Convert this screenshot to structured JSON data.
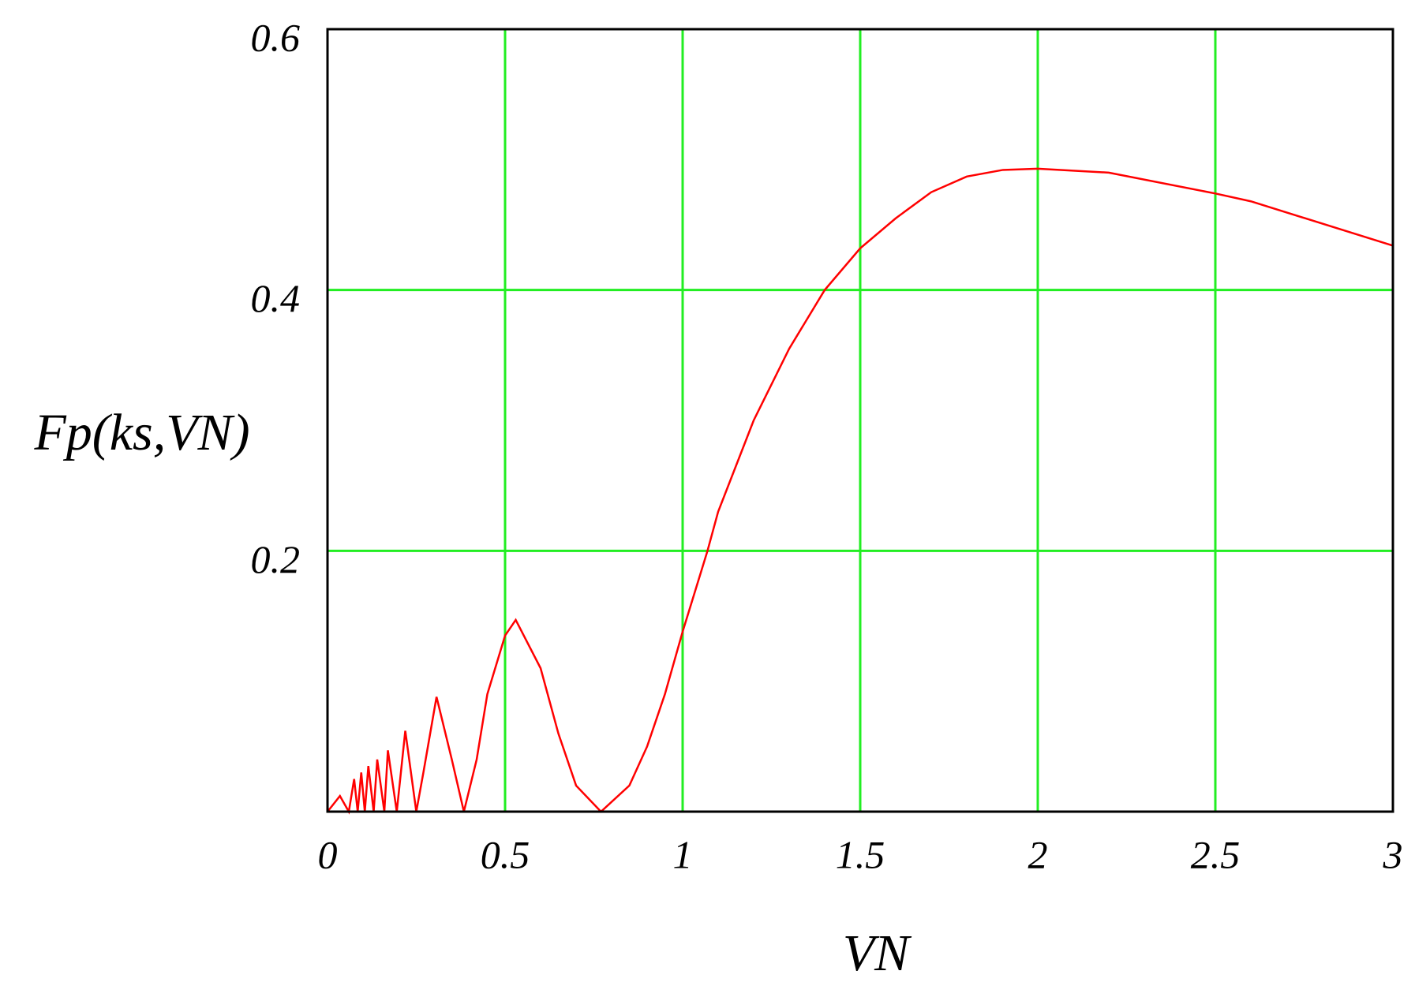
{
  "chart_data": {
    "type": "line",
    "x_label": "VN",
    "y_label": "Fp(ks,VN)",
    "xlim": [
      0,
      3
    ],
    "ylim": [
      0,
      0.6
    ],
    "xticks": [
      0,
      0.5,
      1,
      1.5,
      2,
      2.5,
      3
    ],
    "yticks": [
      0.2,
      0.4,
      0.6
    ],
    "grid": true,
    "grid_color": "#22ee22",
    "series": [
      {
        "name": "Fp",
        "color": "#ff0000",
        "x": [
          0,
          0.035,
          0.06,
          0.075,
          0.085,
          0.095,
          0.105,
          0.115,
          0.13,
          0.14,
          0.16,
          0.17,
          0.195,
          0.219,
          0.25,
          0.27,
          0.307,
          0.35,
          0.384,
          0.42,
          0.45,
          0.5,
          0.53,
          0.6,
          0.65,
          0.7,
          0.77,
          0.85,
          0.9,
          0.95,
          1.0,
          1.07,
          1.1,
          1.2,
          1.3,
          1.4,
          1.5,
          1.6,
          1.7,
          1.8,
          1.9,
          2.0,
          2.2,
          2.5,
          2.6,
          3.0
        ],
        "values": [
          0,
          0.012,
          0,
          0.025,
          0,
          0.03,
          0,
          0.035,
          0,
          0.04,
          0,
          0.047,
          0,
          0.062,
          0,
          0.03,
          0.088,
          0.04,
          0,
          0.04,
          0.09,
          0.135,
          0.147,
          0.11,
          0.06,
          0.02,
          0,
          0.02,
          0.05,
          0.09,
          0.138,
          0.2,
          0.23,
          0.3,
          0.355,
          0.4,
          0.432,
          0.455,
          0.475,
          0.487,
          0.492,
          0.493,
          0.49,
          0.474,
          0.468,
          0.434
        ]
      }
    ]
  }
}
